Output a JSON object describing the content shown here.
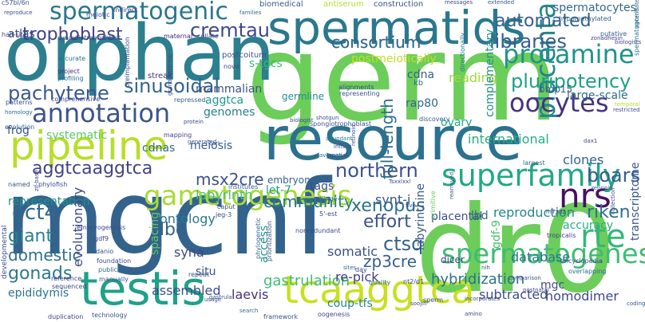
{
  "words": [
    {
      "text": "germ",
      "color": "#6ccd5a"
    },
    {
      "text": "orphan",
      "color": "#2c7f8e"
    },
    {
      "text": "mgcnf",
      "color": "#33638d"
    },
    {
      "text": "dr0",
      "color": "#6ccd5a"
    },
    {
      "text": "resource",
      "color": "#2c718e"
    },
    {
      "text": "spermatids",
      "color": "#2a788e"
    },
    {
      "text": "testis",
      "color": "#1fa187"
    },
    {
      "text": "pipeline",
      "color": "#b8de29"
    },
    {
      "text": "spermatogenic",
      "color": "#2a768e"
    },
    {
      "text": "annotation",
      "color": "#3a548c"
    },
    {
      "text": "gametogenesis",
      "color": "#a8db34"
    },
    {
      "text": "tcaaggtca",
      "color": "#c8e020"
    },
    {
      "text": "placenta",
      "color": "#25848e"
    },
    {
      "text": "nrs",
      "color": "#471063"
    },
    {
      "text": "rte",
      "color": "#35b779"
    },
    {
      "text": "superfamily",
      "color": "#22a884"
    },
    {
      "text": "spermatogenesis",
      "color": "#3fbc73"
    },
    {
      "text": "oocytes",
      "color": "#46337e"
    },
    {
      "text": "cremtau",
      "color": "#3e4989"
    },
    {
      "text": "protamine",
      "color": "#20938c"
    },
    {
      "text": "pluripotency",
      "color": "#1fa088"
    },
    {
      "text": "libraries",
      "color": "#365c8d"
    },
    {
      "text": "consortium",
      "color": "#30698e"
    },
    {
      "text": "trophoblast",
      "color": "#424186"
    },
    {
      "text": "pachytene",
      "color": "#38588c"
    },
    {
      "text": "sinusoidal",
      "color": "#32648e"
    },
    {
      "text": "automated",
      "color": "#355f8d"
    },
    {
      "text": "aggtcaaggtca",
      "color": "#414487"
    },
    {
      "text": "northern",
      "color": "#3b528b"
    },
    {
      "text": "oct4",
      "color": "#31688e"
    },
    {
      "text": "xenopus",
      "color": "#2c728e"
    },
    {
      "text": "boars",
      "color": "#355e8d"
    },
    {
      "text": "riken",
      "color": "#2d708e"
    },
    {
      "text": "msx2cre",
      "color": "#3b518b"
    },
    {
      "text": "community",
      "color": "#2a788e"
    },
    {
      "text": "effort",
      "color": "#3b528b"
    },
    {
      "text": "ctsq",
      "color": "#33638d"
    },
    {
      "text": "giant",
      "color": "#26828e"
    },
    {
      "text": "dbd",
      "color": "#34608d"
    },
    {
      "text": "domestic",
      "color": "#2d708e"
    },
    {
      "text": "gonads",
      "color": "#29798e"
    },
    {
      "text": "assembled",
      "color": "#3c4f8a"
    },
    {
      "text": "gastrulation",
      "color": "#3fbc73"
    },
    {
      "text": "hybridization",
      "color": "#2c728e"
    },
    {
      "text": "zp3cre",
      "color": "#355f8d"
    },
    {
      "text": "synt-i",
      "color": "#39568c"
    },
    {
      "text": "laevis",
      "color": "#46327e"
    },
    {
      "text": "labyrinth",
      "color": "#4ac16d"
    },
    {
      "text": "full-length",
      "color": "#2e6e8e"
    },
    {
      "text": "ontology",
      "color": "#2a788e"
    },
    {
      "text": "database",
      "color": "#2b748e"
    },
    {
      "text": "somatic",
      "color": "#3d4e8a"
    },
    {
      "text": "subtracted",
      "color": "#3e4c8a"
    },
    {
      "text": "homodimer",
      "color": "#3f4889"
    },
    {
      "text": "spermatocytes",
      "color": "#31688e"
    },
    {
      "text": "transcriptome",
      "color": "#3a538b"
    },
    {
      "text": "reproduction",
      "color": "#24878e"
    },
    {
      "text": "postmeiotically",
      "color": "#c2df23"
    },
    {
      "text": "s-tgcs",
      "color": "#38b977"
    },
    {
      "text": "labyrinthine",
      "color": "#38598c"
    },
    {
      "text": "mammalian",
      "color": "#3b528b"
    },
    {
      "text": "aggtca",
      "color": "#1e9b8a"
    },
    {
      "text": "genomes",
      "color": "#27808e"
    },
    {
      "text": "meiosis",
      "color": "#355e8d"
    },
    {
      "text": "cdnas",
      "color": "#2f6b8e"
    },
    {
      "text": "systematic",
      "color": "#5ac864"
    },
    {
      "text": "frog",
      "color": "#3b528b"
    },
    {
      "text": "cdna",
      "color": "#34618d"
    },
    {
      "text": "rap80",
      "color": "#31678e"
    },
    {
      "text": "reading",
      "color": "#9fda3a"
    },
    {
      "text": "ovary",
      "color": "#22a884"
    },
    {
      "text": "germline",
      "color": "#228d8d"
    },
    {
      "text": "international",
      "color": "#26ad81"
    },
    {
      "text": "clones",
      "color": "#32658e"
    },
    {
      "text": "complementary",
      "color": "#20938c"
    },
    {
      "text": "large-scale",
      "color": "#2f6b8e"
    },
    {
      "text": "bmp15",
      "color": "#38598c"
    },
    {
      "text": "tags",
      "color": "#3e4a89"
    },
    {
      "text": "let-7",
      "color": "#1f9f88"
    },
    {
      "text": "embryonal",
      "color": "#33638d"
    },
    {
      "text": "placental",
      "color": "#3b528b"
    },
    {
      "text": "lbd",
      "color": "#31688e"
    },
    {
      "text": "representation",
      "color": "#21918c"
    },
    {
      "text": "evolutionary",
      "color": "#3e4989"
    },
    {
      "text": "spacing",
      "color": "#5ec962"
    },
    {
      "text": "access",
      "color": "#1f968b"
    },
    {
      "text": "syna",
      "color": "#404588"
    },
    {
      "text": "situ",
      "color": "#39558c"
    },
    {
      "text": "re-pick",
      "color": "#433e85"
    },
    {
      "text": "coup-tfs",
      "color": "#26828e"
    },
    {
      "text": "dicer",
      "color": "#404688"
    },
    {
      "text": "mgc",
      "color": "#3d4d8a"
    },
    {
      "text": "accuracy",
      "color": "#26ad81"
    },
    {
      "text": "gdf-9",
      "color": "#4ac16d"
    },
    {
      "text": "epididymis",
      "color": "#2b748e"
    },
    {
      "text": "consortium",
      "color": "#30698e"
    },
    {
      "text": "atlas",
      "color": "#3b528b"
    },
    {
      "text": "biomedical",
      "color": "#365c8d"
    },
    {
      "text": "antiserum",
      "color": "#b5de2b"
    },
    {
      "text": "construction",
      "color": "#3b528b"
    },
    {
      "text": "streak",
      "color": "#46327e"
    },
    {
      "text": "postcoitum",
      "color": "#3b528b"
    },
    {
      "text": "hypomethylated",
      "color": "#33638d"
    },
    {
      "text": "putative",
      "color": "#355f8d"
    },
    {
      "text": "messages",
      "color": "#3e4a89"
    },
    {
      "text": "extended",
      "color": "#38598c"
    },
    {
      "text": "spermatogonia",
      "color": "#2a788e"
    },
    {
      "text": "syncytiotrophoblast",
      "color": "#3b528b"
    },
    {
      "text": "maternal",
      "color": "#482677"
    },
    {
      "text": "collate",
      "color": "#3b528b"
    },
    {
      "text": "indirect",
      "color": "#3e4a89"
    },
    {
      "text": "meiotic",
      "color": "#404688"
    },
    {
      "text": "half-site",
      "color": "#3e4c8a"
    },
    {
      "text": "accurate",
      "color": "#2e6e8e"
    },
    {
      "text": "project",
      "color": "#46327e"
    },
    {
      "text": "profiling",
      "color": "#2d708e"
    },
    {
      "text": "patterns",
      "color": "#3b528b"
    },
    {
      "text": "comprehensive",
      "color": "#3e4a89"
    },
    {
      "text": "homology",
      "color": "#2f6b8e"
    },
    {
      "text": "evolution",
      "color": "#32648e"
    },
    {
      "text": "repressed",
      "color": "#33638d"
    },
    {
      "text": "representing",
      "color": "#3b528b"
    },
    {
      "text": "alignments",
      "color": "#404688"
    },
    {
      "text": "spongiotrophoblast",
      "color": "#3b528b"
    },
    {
      "text": "biologist",
      "color": "#3e4a89"
    },
    {
      "text": "discovery",
      "color": "#34608d"
    },
    {
      "text": "directionally",
      "color": "#2a788e"
    },
    {
      "text": "temporal",
      "color": "#b8de29"
    },
    {
      "text": "restricted",
      "color": "#3b528b"
    },
    {
      "text": "mapping",
      "color": "#404688"
    },
    {
      "text": "generated",
      "color": "#365c8d"
    },
    {
      "text": "carl",
      "color": "#3b528b"
    },
    {
      "text": "abundant",
      "color": "#26828e"
    },
    {
      "text": "infls-si",
      "color": "#3e4a89"
    },
    {
      "text": "average",
      "color": "#2f6b8e"
    },
    {
      "text": "retinoid",
      "color": "#3b528b"
    },
    {
      "text": "dax1",
      "color": "#404688"
    },
    {
      "text": "largest",
      "color": "#31688e"
    },
    {
      "text": "named",
      "color": "#3b528b"
    },
    {
      "text": "phylofish",
      "color": "#3e4a89"
    },
    {
      "text": "institutes",
      "color": "#34608d"
    },
    {
      "text": "hinge",
      "color": "#2d708e"
    },
    {
      "text": "rearrayed",
      "color": "#3b528b"
    },
    {
      "text": "5'-est",
      "color": "#3e4a89"
    },
    {
      "text": "primitive",
      "color": "#6ccd5a"
    },
    {
      "text": "retinoid",
      "color": "#33638d"
    },
    {
      "text": "collection",
      "color": "#3b528b"
    },
    {
      "text": "tropicalis",
      "color": "#404688"
    },
    {
      "text": "encyclopedia",
      "color": "#3e4a89"
    },
    {
      "text": "overlapping",
      "color": "#2f6b8e"
    },
    {
      "text": "comparison",
      "color": "#3b528b"
    },
    {
      "text": "postnatal",
      "color": "#3e4a89"
    },
    {
      "text": "caput",
      "color": "#3b528b"
    },
    {
      "text": "jeg-3",
      "color": "#404688"
    },
    {
      "text": "nonredundant",
      "color": "#3e4a89"
    },
    {
      "text": "phylogenetic",
      "color": "#31688e"
    },
    {
      "text": "prioritization",
      "color": "#3b528b"
    },
    {
      "text": "embryogenesis",
      "color": "#3e4a89"
    },
    {
      "text": "gdf9",
      "color": "#404688"
    },
    {
      "text": "danio",
      "color": "#3b528b"
    },
    {
      "text": "foundation",
      "color": "#3e4a89"
    },
    {
      "text": "publicly",
      "color": "#2f6b8e"
    },
    {
      "text": "manually",
      "color": "#3b528b"
    },
    {
      "text": "sequenced",
      "color": "#3e4a89"
    },
    {
      "text": "reference",
      "color": "#404688"
    },
    {
      "text": "repeat",
      "color": "#3b528b"
    },
    {
      "text": "usage",
      "color": "#3e4a89"
    },
    {
      "text": "search",
      "color": "#2f6b8e"
    },
    {
      "text": "framework",
      "color": "#3b528b"
    },
    {
      "text": "oogenesis",
      "color": "#3e4a89"
    },
    {
      "text": "duplication",
      "color": "#404688"
    },
    {
      "text": "technology",
      "color": "#3b528b"
    },
    {
      "text": "quality",
      "color": "#2f6b8e"
    },
    {
      "text": "nt2/d1",
      "color": "#3e4a89"
    },
    {
      "text": "sperm",
      "color": "#3b528b"
    },
    {
      "text": "incorporates",
      "color": "#404688"
    },
    {
      "text": "amino",
      "color": "#3e4a89"
    },
    {
      "text": "coding",
      "color": "#3b528b"
    },
    {
      "text": "day",
      "color": "#3e4a89"
    },
    {
      "text": "mir302",
      "color": "#404688"
    },
    {
      "text": "developmental",
      "color": "#3b528b"
    },
    {
      "text": "biologists",
      "color": "#3e4a89"
    },
    {
      "text": "potentiated",
      "color": "#2f6b8e"
    },
    {
      "text": "c57bl/6n",
      "color": "#3b528b"
    },
    {
      "text": "reproduce",
      "color": "#3e4a89"
    },
    {
      "text": "novo",
      "color": "#404688"
    },
    {
      "text": "preimplantation",
      "color": "#3b528b"
    },
    {
      "text": "grandmaternal",
      "color": "#3e4a89"
    },
    {
      "text": "families",
      "color": "#2f6b8e"
    },
    {
      "text": "nih",
      "color": "#3b528b"
    },
    {
      "text": "soojin",
      "color": "#3e4a89"
    },
    {
      "text": "spatial",
      "color": "#404688"
    },
    {
      "text": "gastrula",
      "color": "#3b528b"
    },
    {
      "text": "zif-base",
      "color": "#3e4a89"
    },
    {
      "text": "sites",
      "color": "#2f6b8e"
    },
    {
      "text": "shotgun",
      "color": "#3b528b"
    },
    {
      "text": "protein",
      "color": "#3e4a89"
    },
    {
      "text": "zonadhesin",
      "color": "#404688"
    },
    {
      "text": "five",
      "color": "#3b528b"
    },
    {
      "text": "Tsxxlxxl",
      "color": "#3e4a89"
    },
    {
      "text": "kb",
      "color": "#2f6b8e"
    }
  ]
}
